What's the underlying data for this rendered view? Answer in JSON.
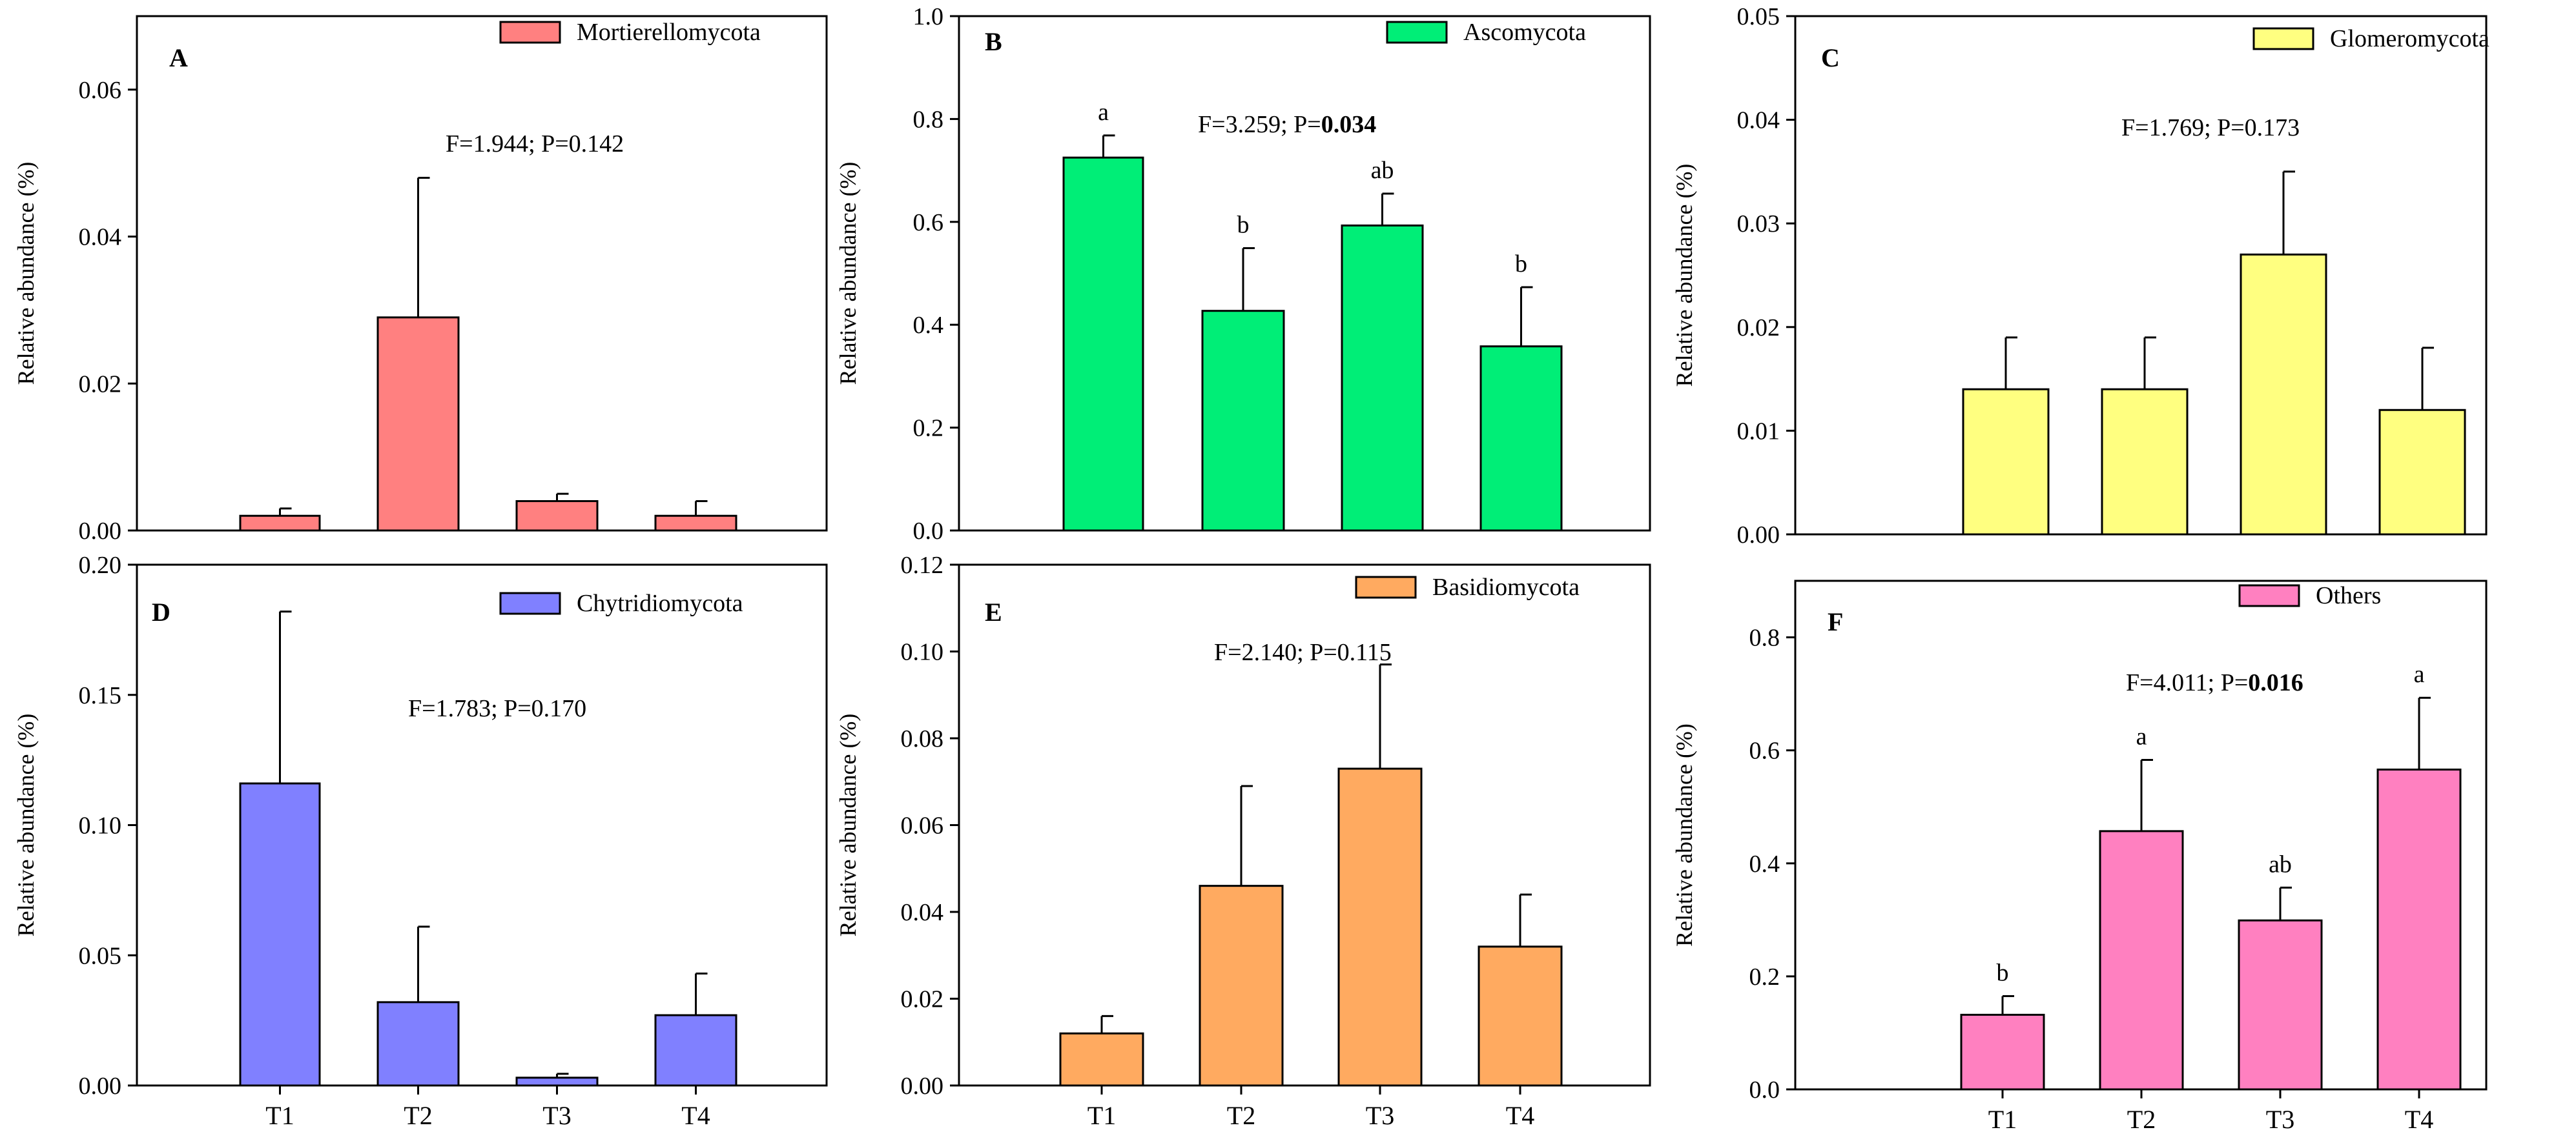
{
  "chart_data": [
    {
      "type": "bar",
      "panel": "A",
      "legend": "Mortierellomycota",
      "color": "#ff8080",
      "ylabel": "Relative abundance (%)",
      "ylim": [
        0,
        0.07
      ],
      "yticks": [
        "0.00",
        "0.02",
        "0.04",
        "0.06"
      ],
      "categories": [
        "T1",
        "T2",
        "T3",
        "T4"
      ],
      "values": [
        0.002,
        0.029,
        0.004,
        0.002
      ],
      "errors": [
        0.001,
        0.019,
        0.001,
        0.002
      ],
      "letters": [
        "",
        "",
        "",
        ""
      ],
      "stat_text": "F=1.944; P=0.142",
      "stat_bold": "",
      "show_xticks": false
    },
    {
      "type": "bar",
      "panel": "B",
      "legend": "Ascomycota",
      "color": "#00ee77",
      "ylabel": "Relative abundance (%)",
      "ylim": [
        0,
        1.0
      ],
      "yticks": [
        "0.0",
        "0.2",
        "0.4",
        "0.6",
        "0.8",
        "1.0"
      ],
      "categories": [
        "T1",
        "T2",
        "T3",
        "T4"
      ],
      "values": [
        0.725,
        0.427,
        0.593,
        0.358
      ],
      "errors": [
        0.043,
        0.122,
        0.062,
        0.115
      ],
      "letters": [
        "a",
        "b",
        "ab",
        "b"
      ],
      "stat_text": "F=3.259; P=",
      "stat_bold": "0.034",
      "show_xticks": false
    },
    {
      "type": "bar",
      "panel": "C",
      "legend": "Glomeromycota",
      "color": "#ffff80",
      "ylabel": "Relative abundance (%)",
      "ylim": [
        0,
        0.05
      ],
      "yticks": [
        "0.00",
        "0.01",
        "0.02",
        "0.03",
        "0.04",
        "0.05"
      ],
      "categories": [
        "T1",
        "T2",
        "T3",
        "T4"
      ],
      "values": [
        0.014,
        0.014,
        0.027,
        0.012
      ],
      "errors": [
        0.005,
        0.005,
        0.008,
        0.006
      ],
      "letters": [
        "",
        "",
        "",
        ""
      ],
      "stat_text": "F=1.769; P=0.173",
      "stat_bold": "",
      "show_xticks": false
    },
    {
      "type": "bar",
      "panel": "D",
      "legend": "Chytridiomycota",
      "color": "#8080ff",
      "ylabel": "Relative abundance (%)",
      "ylim": [
        0,
        0.2
      ],
      "yticks": [
        "0.00",
        "0.05",
        "0.10",
        "0.15",
        "0.20"
      ],
      "categories": [
        "T1",
        "T2",
        "T3",
        "T4"
      ],
      "values": [
        0.116,
        0.032,
        0.003,
        0.027
      ],
      "errors": [
        0.066,
        0.029,
        0.0015,
        0.016
      ],
      "letters": [
        "",
        "",
        "",
        ""
      ],
      "stat_text": "F=1.783; P=0.170",
      "stat_bold": "",
      "show_xticks": true
    },
    {
      "type": "bar",
      "panel": "E",
      "legend": "Basidiomycota",
      "color": "#ffaa60",
      "ylabel": "Relative abundance (%)",
      "ylim": [
        0,
        0.12
      ],
      "yticks": [
        "0.00",
        "0.02",
        "0.04",
        "0.06",
        "0.08",
        "0.10",
        "0.12"
      ],
      "categories": [
        "T1",
        "T2",
        "T3",
        "T4"
      ],
      "values": [
        0.012,
        0.046,
        0.073,
        0.032
      ],
      "errors": [
        0.004,
        0.023,
        0.024,
        0.012
      ],
      "letters": [
        "",
        "",
        "",
        ""
      ],
      "stat_text": "F=2.140; P=0.115",
      "stat_bold": "",
      "show_xticks": true
    },
    {
      "type": "bar",
      "panel": "F",
      "legend": "Others",
      "color": "#ff80c0",
      "ylabel": "Relative abundance (%)",
      "ylim": [
        0,
        0.9
      ],
      "yticks": [
        "0.0",
        "0.2",
        "0.4",
        "0.6",
        "0.8"
      ],
      "categories": [
        "T1",
        "T2",
        "T3",
        "T4"
      ],
      "values": [
        0.132,
        0.457,
        0.299,
        0.566
      ],
      "errors": [
        0.033,
        0.126,
        0.058,
        0.127
      ],
      "letters": [
        "b",
        "a",
        "ab",
        "a"
      ],
      "stat_text": "F=4.011; P=",
      "stat_bold": "0.016",
      "show_xticks": true
    }
  ]
}
